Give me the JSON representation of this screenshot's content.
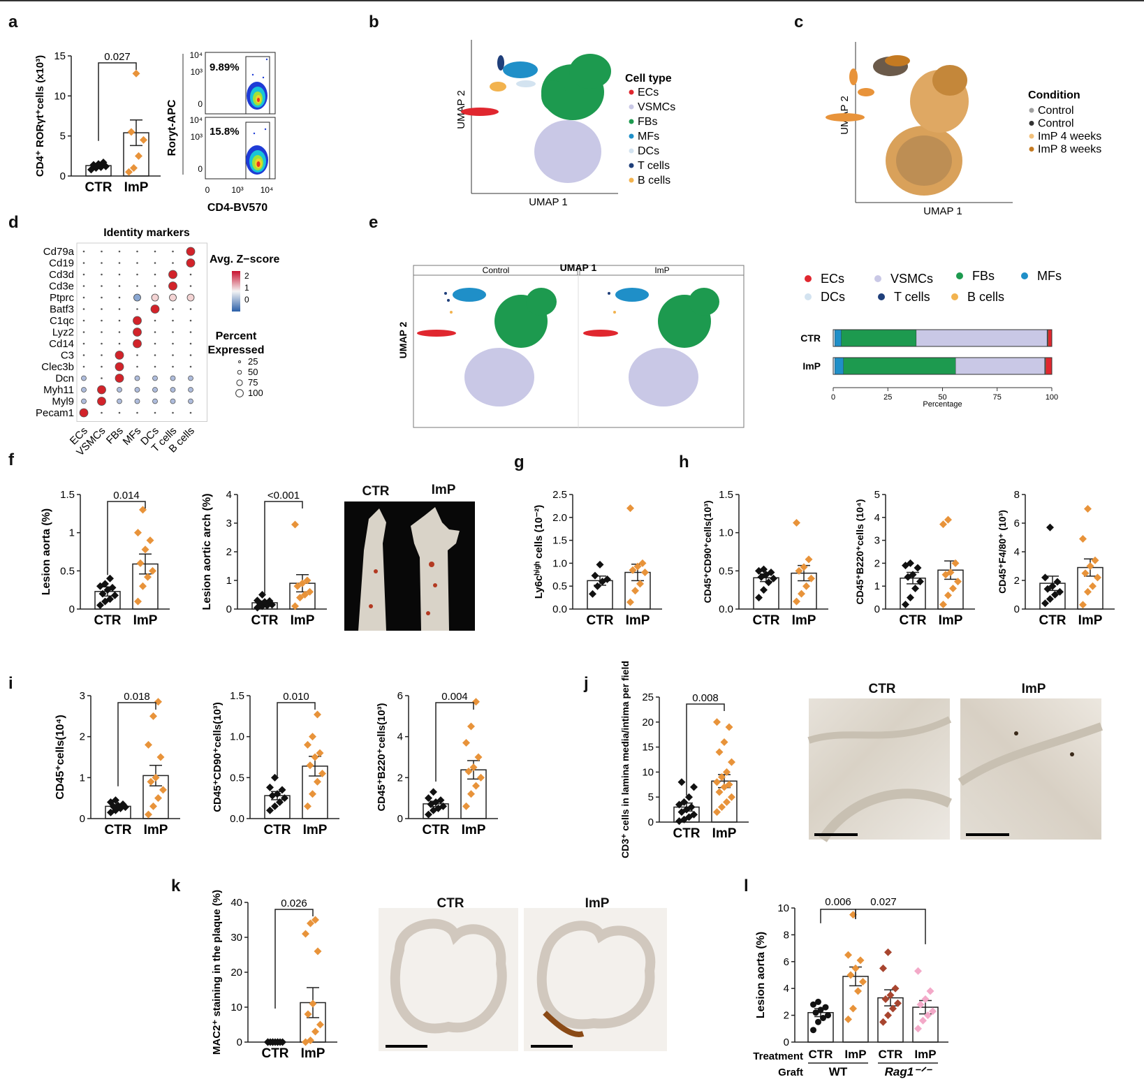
{
  "panel_letters": [
    "a",
    "b",
    "c",
    "d",
    "e",
    "f",
    "g",
    "h",
    "i",
    "j",
    "k",
    "l"
  ],
  "groups": {
    "ctr": "CTR",
    "imp": "ImP"
  },
  "colors": {
    "ctr": "#111111",
    "imp": "#e8933a",
    "rag_ctr": "#a8452f",
    "rag_imp": "#f3a9c8",
    "ec": "#e0272f",
    "vsmc": "#c9c8e6",
    "fb": "#1d9a4f",
    "mf": "#1f8fc8",
    "dc": "#d3e3f0",
    "t": "#1f3f7a",
    "b": "#f2b34f"
  },
  "flow": {
    "xlabel": "CD4-BV570",
    "ylabel": "Roryt-APC",
    "top_pct": "9.89%",
    "bottom_pct": "15.8%",
    "yticks": [
      "10⁴",
      "10³",
      "0"
    ],
    "xticks": [
      "0",
      "10³",
      "10⁴"
    ]
  },
  "umap_b": {
    "xlabel": "UMAP 1",
    "ylabel": "UMAP 2",
    "legend_title": "Cell type",
    "legend": [
      "ECs",
      "VSMCs",
      "FBs",
      "MFs",
      "DCs",
      "T cells",
      "B cells"
    ]
  },
  "umap_c": {
    "xlabel": "UMAP 1",
    "ylabel": "UMAP 2",
    "legend_title": "Condition",
    "legend": [
      "Control",
      "Control",
      "ImP 4 weeks",
      "ImP 8 weeks"
    ],
    "legend_colors": [
      "#a0a0a0",
      "#333333",
      "#f2c07a",
      "#c47a22"
    ]
  },
  "dotplot": {
    "title": "Identity markers",
    "color_title": "Avg. Z−score",
    "size_title_1": "Percent",
    "size_title_2": "Expressed",
    "color_ticks": [
      "2",
      "1",
      "0"
    ],
    "size_ticks": [
      "25",
      "50",
      "75",
      "100"
    ]
  },
  "umap_e": {
    "facets": [
      "Control",
      "ImP"
    ],
    "xlabel": "UMAP 1",
    "ylabel": "UMAP 2"
  },
  "stacked": {
    "xlabel": "Percentage",
    "xticks": [
      "0",
      "25",
      "50",
      "75",
      "100"
    ],
    "legend": [
      "ECs",
      "VSMCs",
      "FBs",
      "MFs",
      "DCs",
      "T cells",
      "B cells"
    ]
  },
  "photos": {
    "f": [
      "CTR",
      "ImP"
    ],
    "j": [
      "CTR",
      "ImP"
    ],
    "k": [
      "CTR",
      "ImP"
    ]
  },
  "l_axis": {
    "treatment": "Treatment",
    "graft": "Graft",
    "wt": "WT",
    "rag": "Rag1⁻ᐟ⁻"
  },
  "chart_data": [
    {
      "id": "a",
      "type": "bar",
      "ylabel": "CD4⁺ RORγt⁺cells (x10³)",
      "yticks": [
        0,
        5,
        10,
        15
      ],
      "ylim": [
        0,
        15
      ],
      "categories": [
        "CTR",
        "ImP"
      ],
      "means": [
        1.3,
        5.4
      ],
      "sems": [
        0.25,
        1.6
      ],
      "points": [
        [
          0.8,
          1.0,
          1.1,
          1.2,
          1.4,
          1.5,
          1.7
        ],
        [
          0.5,
          1.0,
          2.5,
          4.5,
          5.5,
          12.8
        ]
      ],
      "pvalue": "0.027"
    },
    {
      "id": "dotplot",
      "type": "scatter",
      "genes": [
        "Cd79a",
        "Cd19",
        "Cd3d",
        "Cd3e",
        "Ptprc",
        "Batf3",
        "C1qc",
        "Lyz2",
        "Cd14",
        "C3",
        "Clec3b",
        "Dcn",
        "Myh11",
        "Myl9",
        "Pecam1"
      ],
      "celltypes": [
        "ECs",
        "VSMCs",
        "FBs",
        "MFs",
        "DCs",
        "T cells",
        "B cells"
      ],
      "marker_of": [
        6,
        6,
        5,
        5,
        -1,
        4,
        3,
        3,
        3,
        2,
        2,
        2,
        1,
        1,
        0
      ]
    },
    {
      "id": "e_bar",
      "type": "bar",
      "categories": [
        "CTR",
        "ImP"
      ],
      "series_order": [
        "DCs",
        "MFs",
        "FBs",
        "VSMCs",
        "T cells",
        "B cells",
        "ECs"
      ],
      "values": [
        [
          0.7,
          3.0,
          34.3,
          59.8,
          0.3,
          0.3,
          1.6
        ],
        [
          0.7,
          4.0,
          51.3,
          40.7,
          0.3,
          0.3,
          2.7
        ]
      ]
    },
    {
      "id": "f1",
      "type": "bar",
      "ylabel": "Lesion aorta (%)",
      "yticks": [
        0.0,
        0.5,
        1.0,
        1.5
      ],
      "ylim": [
        0,
        1.5
      ],
      "categories": [
        "CTR",
        "ImP"
      ],
      "means": [
        0.23,
        0.59
      ],
      "sems": [
        0.06,
        0.13
      ],
      "points": [
        [
          0.05,
          0.1,
          0.13,
          0.18,
          0.2,
          0.25,
          0.28,
          0.3,
          0.33,
          0.4
        ],
        [
          0.1,
          0.3,
          0.42,
          0.5,
          0.6,
          0.78,
          0.9,
          1.0,
          1.3
        ]
      ],
      "pvalue": "0.014"
    },
    {
      "id": "f2",
      "type": "bar",
      "ylabel": "Lesion aortic arch (%)",
      "yticks": [
        0,
        1,
        2,
        3,
        4
      ],
      "ylim": [
        0,
        4
      ],
      "categories": [
        "CTR",
        "ImP"
      ],
      "means": [
        0.22,
        0.9
      ],
      "sems": [
        0.06,
        0.3
      ],
      "points": [
        [
          0.05,
          0.1,
          0.12,
          0.15,
          0.2,
          0.25,
          0.28,
          0.3,
          0.5
        ],
        [
          0.1,
          0.4,
          0.5,
          0.6,
          0.8,
          0.9,
          1.0,
          2.95
        ]
      ],
      "pvalue": "<0.001"
    },
    {
      "id": "g",
      "type": "bar",
      "ylabel": "Ly6cʰⁱᵍʰ cells (10⁻²)",
      "yticks": [
        "0.0",
        "0.5",
        "1.0",
        "1.5",
        "2.0",
        "2.5"
      ],
      "ylim": [
        0,
        2.5
      ],
      "categories": [
        "CTR",
        "ImP"
      ],
      "means": [
        0.62,
        0.8
      ],
      "sems": [
        0.1,
        0.18
      ],
      "points": [
        [
          0.33,
          0.5,
          0.6,
          0.65,
          0.73,
          0.97
        ],
        [
          0.15,
          0.4,
          0.55,
          0.8,
          0.85,
          0.93,
          1.0,
          2.2
        ]
      ]
    },
    {
      "id": "h1",
      "type": "bar",
      "ylabel": "CD45⁺CD90⁺cells(10³)",
      "yticks": [
        "0.0",
        "0.5",
        "1.0",
        "1.5"
      ],
      "ylim": [
        0,
        1.5
      ],
      "categories": [
        "CTR",
        "ImP"
      ],
      "means": [
        0.41,
        0.47
      ],
      "sems": [
        0.05,
        0.1
      ],
      "points": [
        [
          0.15,
          0.25,
          0.35,
          0.4,
          0.42,
          0.45,
          0.48,
          0.5,
          0.52
        ],
        [
          0.1,
          0.2,
          0.3,
          0.4,
          0.5,
          0.55,
          0.65,
          1.13
        ]
      ]
    },
    {
      "id": "h2",
      "type": "bar",
      "ylabel": "CD45⁺B220⁺cells (10⁴)",
      "yticks": [
        0,
        1,
        2,
        3,
        4,
        5
      ],
      "ylim": [
        0,
        5
      ],
      "categories": [
        "CTR",
        "ImP"
      ],
      "means": [
        1.35,
        1.7
      ],
      "sems": [
        0.25,
        0.4
      ],
      "points": [
        [
          0.2,
          0.5,
          0.9,
          1.2,
          1.4,
          1.5,
          1.8,
          1.9,
          2.0
        ],
        [
          0.2,
          0.6,
          0.9,
          1.2,
          1.5,
          1.6,
          2.0,
          3.7,
          3.9
        ]
      ]
    },
    {
      "id": "h3",
      "type": "bar",
      "ylabel": "CD45⁺F4/80⁺ (10³)",
      "yticks": [
        0,
        2,
        4,
        6,
        8
      ],
      "ylim": [
        0,
        8
      ],
      "categories": [
        "CTR",
        "ImP"
      ],
      "means": [
        1.8,
        2.9
      ],
      "sems": [
        0.5,
        0.6
      ],
      "points": [
        [
          0.4,
          0.7,
          1.0,
          1.2,
          1.4,
          1.6,
          1.9,
          2.2,
          5.7
        ],
        [
          0.3,
          1.2,
          1.6,
          2.2,
          2.5,
          3.0,
          3.4,
          4.9,
          7.0
        ]
      ]
    },
    {
      "id": "i1",
      "type": "bar",
      "ylabel": "CD45⁺cells(10⁴)",
      "yticks": [
        0,
        1,
        2,
        3
      ],
      "ylim": [
        0,
        3
      ],
      "categories": [
        "CTR",
        "ImP"
      ],
      "means": [
        0.3,
        1.05
      ],
      "sems": [
        0.04,
        0.25
      ],
      "points": [
        [
          0.15,
          0.2,
          0.25,
          0.28,
          0.3,
          0.32,
          0.35,
          0.4,
          0.45
        ],
        [
          0.1,
          0.3,
          0.5,
          0.7,
          0.9,
          1.0,
          1.5,
          1.8,
          2.5,
          2.85
        ]
      ],
      "pvalue": "0.018"
    },
    {
      "id": "i2",
      "type": "bar",
      "ylabel": "CD45⁺CD90⁺cells(10³)",
      "yticks": [
        "0.0",
        "0.5",
        "1.0",
        "1.5"
      ],
      "ylim": [
        0,
        1.5
      ],
      "categories": [
        "CTR",
        "ImP"
      ],
      "means": [
        0.28,
        0.64
      ],
      "sems": [
        0.05,
        0.12
      ],
      "points": [
        [
          0.1,
          0.15,
          0.2,
          0.25,
          0.28,
          0.3,
          0.35,
          0.38,
          0.5
        ],
        [
          0.15,
          0.3,
          0.45,
          0.55,
          0.65,
          0.75,
          0.8,
          0.9,
          1.0,
          1.27
        ]
      ],
      "pvalue": "0.010"
    },
    {
      "id": "i3",
      "type": "bar",
      "ylabel": "CD45⁺B220⁺cells(10³)",
      "yticks": [
        0,
        2,
        4,
        6
      ],
      "ylim": [
        0,
        6
      ],
      "categories": [
        "CTR",
        "ImP"
      ],
      "means": [
        0.72,
        2.38
      ],
      "sems": [
        0.13,
        0.45
      ],
      "points": [
        [
          0.2,
          0.4,
          0.5,
          0.6,
          0.7,
          0.8,
          0.9,
          1.0,
          1.3
        ],
        [
          0.6,
          1.2,
          1.6,
          2.0,
          2.3,
          2.5,
          3.0,
          3.7,
          4.5,
          5.7
        ]
      ],
      "pvalue": "0.004"
    },
    {
      "id": "j",
      "type": "bar",
      "ylabel": "CD3⁺ cells in lamina media/intima per field",
      "yticks": [
        0,
        5,
        10,
        15,
        20,
        25
      ],
      "ylim": [
        0,
        25
      ],
      "categories": [
        "CTR",
        "ImP"
      ],
      "means": [
        3.0,
        8.2
      ],
      "sems": [
        0.8,
        1.3
      ],
      "points": [
        [
          0.2,
          0.5,
          1.0,
          1.5,
          2.0,
          2.5,
          3.0,
          3.5,
          4.0,
          5.0,
          7.0,
          8.0
        ],
        [
          2.0,
          3.0,
          4.0,
          5.0,
          6.0,
          7.0,
          7.5,
          8.0,
          9.0,
          10.0,
          12.0,
          14.0,
          16.0,
          19.0,
          20.0
        ]
      ],
      "pvalue": "0.008"
    },
    {
      "id": "k",
      "type": "bar",
      "ylabel": "MAC2⁺ staining in the plaque (%)",
      "yticks": [
        0,
        10,
        20,
        30,
        40
      ],
      "ylim": [
        0,
        40
      ],
      "categories": [
        "CTR",
        "ImP"
      ],
      "means": [
        0,
        11.3
      ],
      "sems": [
        0,
        4.3
      ],
      "points": [
        [
          0,
          0,
          0,
          0,
          0,
          0,
          0,
          0,
          0,
          0
        ],
        [
          0,
          0.5,
          3,
          5,
          8,
          11,
          26,
          31,
          34,
          35
        ]
      ],
      "pvalue": "0.026"
    },
    {
      "id": "l",
      "type": "bar",
      "ylabel": "Lesion aorta (%)",
      "yticks": [
        0,
        2,
        4,
        6,
        8,
        10
      ],
      "ylim": [
        0,
        10
      ],
      "categories": [
        "CTR",
        "ImP",
        "CTR",
        "ImP"
      ],
      "means": [
        2.2,
        4.9,
        3.3,
        2.6
      ],
      "sems": [
        0.3,
        0.7,
        0.6,
        0.5
      ],
      "points": [
        [
          0.9,
          1.5,
          1.8,
          2.0,
          2.2,
          2.4,
          2.6,
          2.8,
          3.0
        ],
        [
          1.7,
          2.5,
          3.8,
          4.5,
          5.0,
          5.5,
          6.1,
          6.5,
          9.5
        ],
        [
          1.5,
          2.0,
          2.5,
          2.9,
          3.2,
          3.5,
          4.0,
          5.5,
          6.7
        ],
        [
          1.0,
          1.6,
          2.0,
          2.3,
          2.8,
          3.2,
          3.8,
          5.3
        ]
      ],
      "pvalues": [
        "0.006",
        "0.027"
      ]
    }
  ]
}
